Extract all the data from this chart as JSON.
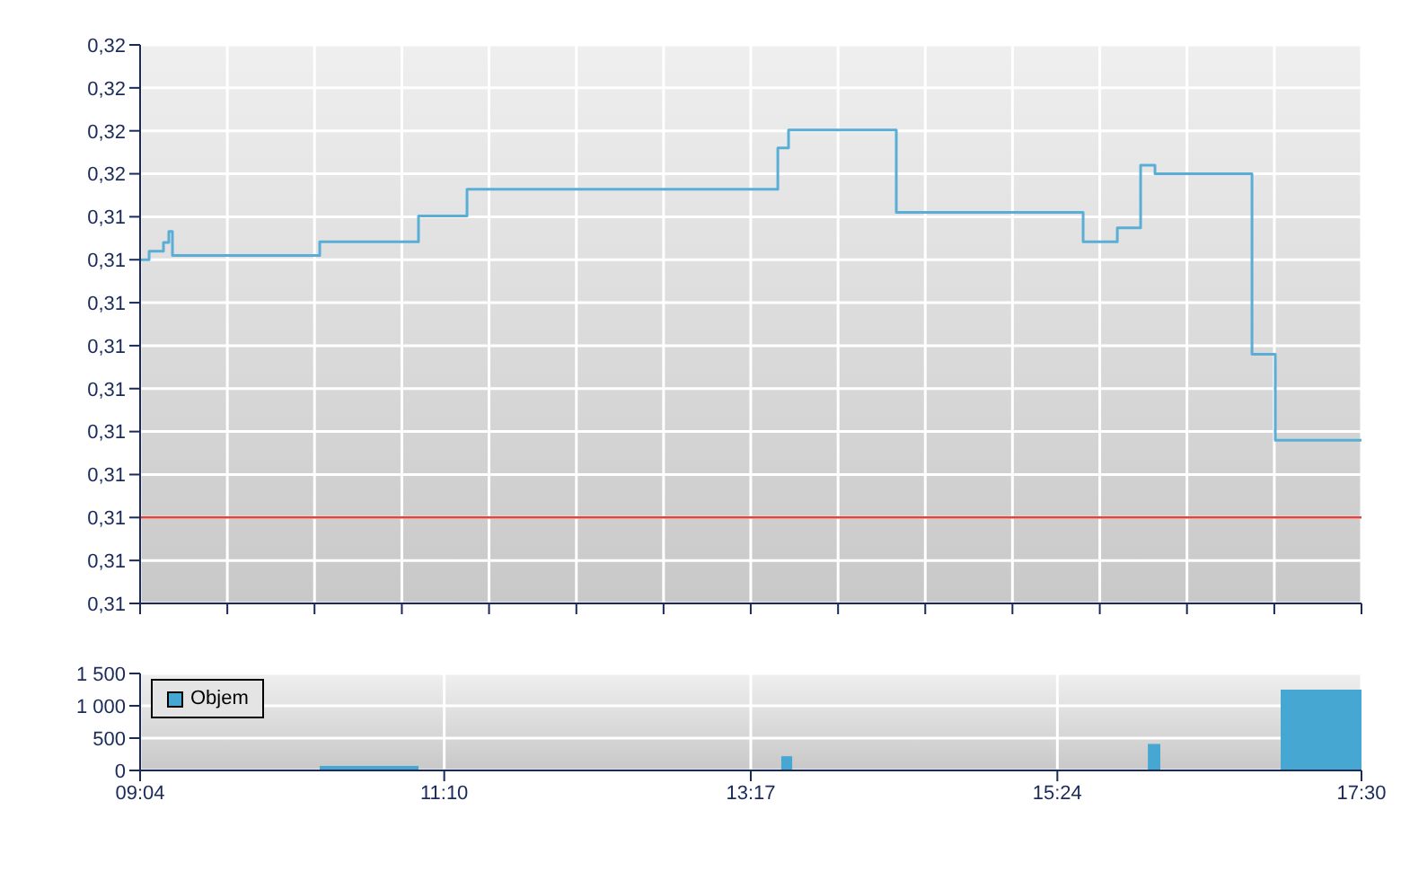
{
  "chart_data": [
    {
      "type": "step",
      "color": "#5aaed6",
      "x": [
        9.0667,
        9.129,
        9.228,
        9.265,
        9.29,
        10.307,
        10.989,
        11.324,
        13.47,
        13.544,
        14.288,
        15.578,
        15.814,
        15.975,
        16.074,
        16.744,
        16.905,
        17.5
      ],
      "values": [
        0.314,
        0.3141,
        0.3142,
        0.31433,
        0.31405,
        0.31421,
        0.31451,
        0.31482,
        0.3153,
        0.31551,
        0.31455,
        0.31421,
        0.31437,
        0.3151,
        0.315,
        0.3129,
        0.3119,
        0.3119
      ],
      "xlim": [
        9.0667,
        17.5
      ],
      "xticks": [
        {
          "value": 9.0667,
          "label": null
        },
        {
          "value": 9.669,
          "label": null
        },
        {
          "value": 10.271,
          "label": null
        },
        {
          "value": 10.874,
          "label": null
        },
        {
          "value": 11.476,
          "label": null
        },
        {
          "value": 12.079,
          "label": null
        },
        {
          "value": 12.681,
          "label": null
        },
        {
          "value": 13.283,
          "label": null
        },
        {
          "value": 13.886,
          "label": null
        },
        {
          "value": 14.488,
          "label": null
        },
        {
          "value": 15.09,
          "label": null
        },
        {
          "value": 15.693,
          "label": null
        },
        {
          "value": 16.295,
          "label": null
        },
        {
          "value": 16.898,
          "label": null
        },
        {
          "value": 17.5,
          "label": null
        }
      ],
      "ylim": [
        0.31,
        0.3165
      ],
      "yticks": [
        {
          "value": 0.31,
          "label": "0,31"
        },
        {
          "value": 0.3105,
          "label": "0,31"
        },
        {
          "value": 0.311,
          "label": "0,31"
        },
        {
          "value": 0.3115,
          "label": "0,31"
        },
        {
          "value": 0.312,
          "label": "0,31"
        },
        {
          "value": 0.3125,
          "label": "0,31"
        },
        {
          "value": 0.313,
          "label": "0,31"
        },
        {
          "value": 0.3135,
          "label": "0,31"
        },
        {
          "value": 0.314,
          "label": "0,31"
        },
        {
          "value": 0.3145,
          "label": "0,31"
        },
        {
          "value": 0.315,
          "label": "0,32"
        },
        {
          "value": 0.3155,
          "label": "0,32"
        },
        {
          "value": 0.316,
          "label": "0,32"
        },
        {
          "value": 0.3165,
          "label": "0,32"
        }
      ],
      "ref_lines": [
        {
          "axis": "y",
          "value": 0.311,
          "color": "#e8413c"
        }
      ],
      "grid": true,
      "tick_labels": "y"
    },
    {
      "type": "histogram",
      "bins": [
        10.307,
        10.989,
        13.494,
        13.569,
        16.025,
        16.111,
        16.942,
        17.5
      ],
      "series": [
        {
          "name": "Objem",
          "color": "#46a7d2",
          "values": [
            70,
            0,
            220,
            0,
            410,
            0,
            1250
          ]
        }
      ],
      "xlim": [
        9.0667,
        17.5
      ],
      "xticks": [
        {
          "value": 9.0667,
          "label": "09:04"
        },
        {
          "value": 11.1667,
          "label": "11:10"
        },
        {
          "value": 13.2833,
          "label": "13:17"
        },
        {
          "value": 15.4,
          "label": "15:24"
        },
        {
          "value": 17.5,
          "label": "17:30"
        }
      ],
      "ylim": [
        0,
        1500
      ],
      "yticks": [
        0,
        500,
        {
          "value": 1000,
          "label": "1 000"
        },
        {
          "value": 1500,
          "label": "1 500"
        }
      ],
      "grid": true,
      "legend": "top left"
    }
  ]
}
